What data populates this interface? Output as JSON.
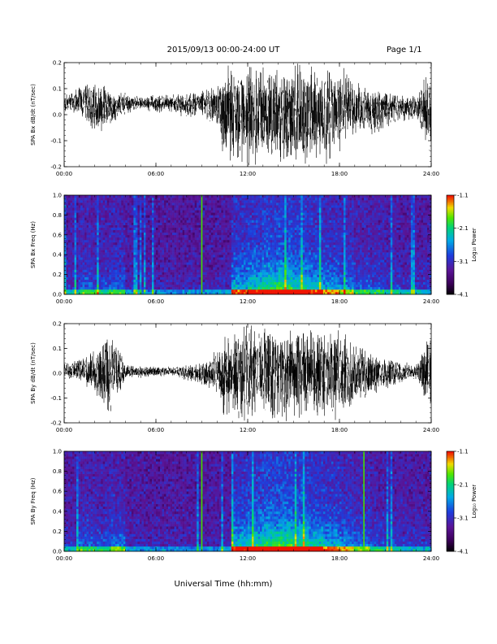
{
  "header": {
    "date_range": "2015/09/13  00:00-24:00 UT",
    "page": "Page 1/1"
  },
  "chart_data": [
    {
      "type": "line",
      "ylabel": "SPA Bx dB/dt (nT/sec)",
      "ylim": [
        -0.2,
        0.2
      ],
      "yticks": [
        "0.2",
        "0.1",
        "0.0",
        "-0.1",
        "-0.2"
      ],
      "xlim": [
        0,
        24
      ],
      "xticks": [
        "00:00",
        "06:00",
        "12:00",
        "18:00",
        "24:00"
      ],
      "series": [
        {
          "x": [
            0,
            1,
            2,
            3,
            4,
            5,
            6,
            7,
            8,
            9,
            10,
            10.5,
            11,
            12,
            13,
            14,
            15,
            16,
            17,
            18,
            19,
            20,
            21,
            22,
            23,
            24
          ],
          "min": [
            0.0,
            -0.01,
            -0.08,
            -0.05,
            0.0,
            0.02,
            0.0,
            0.01,
            -0.02,
            -0.01,
            -0.06,
            -0.2,
            -0.2,
            -0.2,
            -0.2,
            -0.2,
            -0.2,
            -0.2,
            -0.2,
            -0.15,
            -0.08,
            -0.1,
            -0.05,
            -0.03,
            -0.02,
            -0.2
          ],
          "max": [
            0.08,
            0.12,
            0.14,
            0.1,
            0.09,
            0.07,
            0.08,
            0.08,
            0.09,
            0.1,
            0.12,
            0.2,
            0.2,
            0.2,
            0.2,
            0.2,
            0.2,
            0.2,
            0.2,
            0.2,
            0.14,
            0.12,
            0.1,
            0.08,
            0.08,
            0.2
          ]
        }
      ]
    },
    {
      "type": "heatmap",
      "ylabel": "SPA Bx Freq (Hz)",
      "ylim": [
        0.0,
        1.0
      ],
      "yticks": [
        "1.0",
        "0.8",
        "0.6",
        "0.4",
        "0.2",
        "0.0"
      ],
      "xlim": [
        0,
        24
      ],
      "xticks": [
        "00:00",
        "06:00",
        "12:00",
        "18:00",
        "24:00"
      ],
      "colorbar": {
        "label": "Log₁₀ Power",
        "ticks": [
          "-1.1",
          "-2.1",
          "-3.1",
          "-4.1"
        ]
      },
      "activity_by_hour": [
        0.2,
        0.35,
        0.3,
        0.35,
        0.15,
        0.12,
        0.12,
        0.12,
        0.12,
        0.12,
        0.15,
        0.6,
        0.7,
        0.8,
        0.85,
        0.75,
        0.65,
        0.55,
        0.45,
        0.35,
        0.3,
        0.25,
        0.2,
        0.2
      ],
      "spike_lines_hours": [
        9.0
      ]
    },
    {
      "type": "line",
      "ylabel": "SPA By dB/dt (nT/sec)",
      "ylim": [
        -0.2,
        0.2
      ],
      "yticks": [
        "0.2",
        "0.1",
        "0.0",
        "-0.1",
        "-0.2"
      ],
      "xlim": [
        0,
        24
      ],
      "xticks": [
        "00:00",
        "06:00",
        "12:00",
        "18:00",
        "24:00"
      ],
      "series": [
        {
          "x": [
            0,
            1,
            2,
            3,
            4,
            5,
            6,
            7,
            8,
            9,
            10,
            10.5,
            11,
            12,
            13,
            14,
            15,
            16,
            17,
            18,
            19,
            20,
            21,
            22,
            23,
            24
          ],
          "min": [
            -0.02,
            -0.04,
            -0.1,
            -0.2,
            -0.03,
            -0.02,
            -0.02,
            -0.01,
            -0.03,
            -0.05,
            -0.1,
            -0.2,
            -0.2,
            -0.2,
            -0.2,
            -0.2,
            -0.2,
            -0.2,
            -0.2,
            -0.2,
            -0.14,
            -0.1,
            -0.07,
            -0.05,
            -0.03,
            -0.2
          ],
          "max": [
            0.04,
            0.07,
            0.1,
            0.2,
            0.04,
            0.03,
            0.03,
            0.03,
            0.04,
            0.05,
            0.1,
            0.2,
            0.2,
            0.2,
            0.2,
            0.2,
            0.2,
            0.2,
            0.2,
            0.2,
            0.12,
            0.1,
            0.07,
            0.06,
            0.04,
            0.2
          ]
        }
      ]
    },
    {
      "type": "heatmap",
      "ylabel": "SPA By Freq (Hz)",
      "ylim": [
        0.0,
        1.0
      ],
      "yticks": [
        "1.0",
        "0.8",
        "0.6",
        "0.4",
        "0.2",
        "0.0"
      ],
      "xlim": [
        0,
        24
      ],
      "xticks": [
        "00:00",
        "06:00",
        "12:00",
        "18:00",
        "24:00"
      ],
      "colorbar": {
        "label": "Log₁₀ Power",
        "ticks": [
          "-1.1",
          "-2.1",
          "-3.1",
          "-4.1"
        ]
      },
      "activity_by_hour": [
        0.2,
        0.35,
        0.3,
        0.4,
        0.15,
        0.12,
        0.12,
        0.12,
        0.12,
        0.12,
        0.15,
        0.65,
        0.75,
        0.85,
        0.9,
        0.8,
        0.7,
        0.6,
        0.5,
        0.4,
        0.3,
        0.25,
        0.2,
        0.2
      ],
      "spike_lines_hours": [
        9.0,
        19.6
      ]
    }
  ],
  "xaxis_title": "Universal Time (hh:mm)"
}
